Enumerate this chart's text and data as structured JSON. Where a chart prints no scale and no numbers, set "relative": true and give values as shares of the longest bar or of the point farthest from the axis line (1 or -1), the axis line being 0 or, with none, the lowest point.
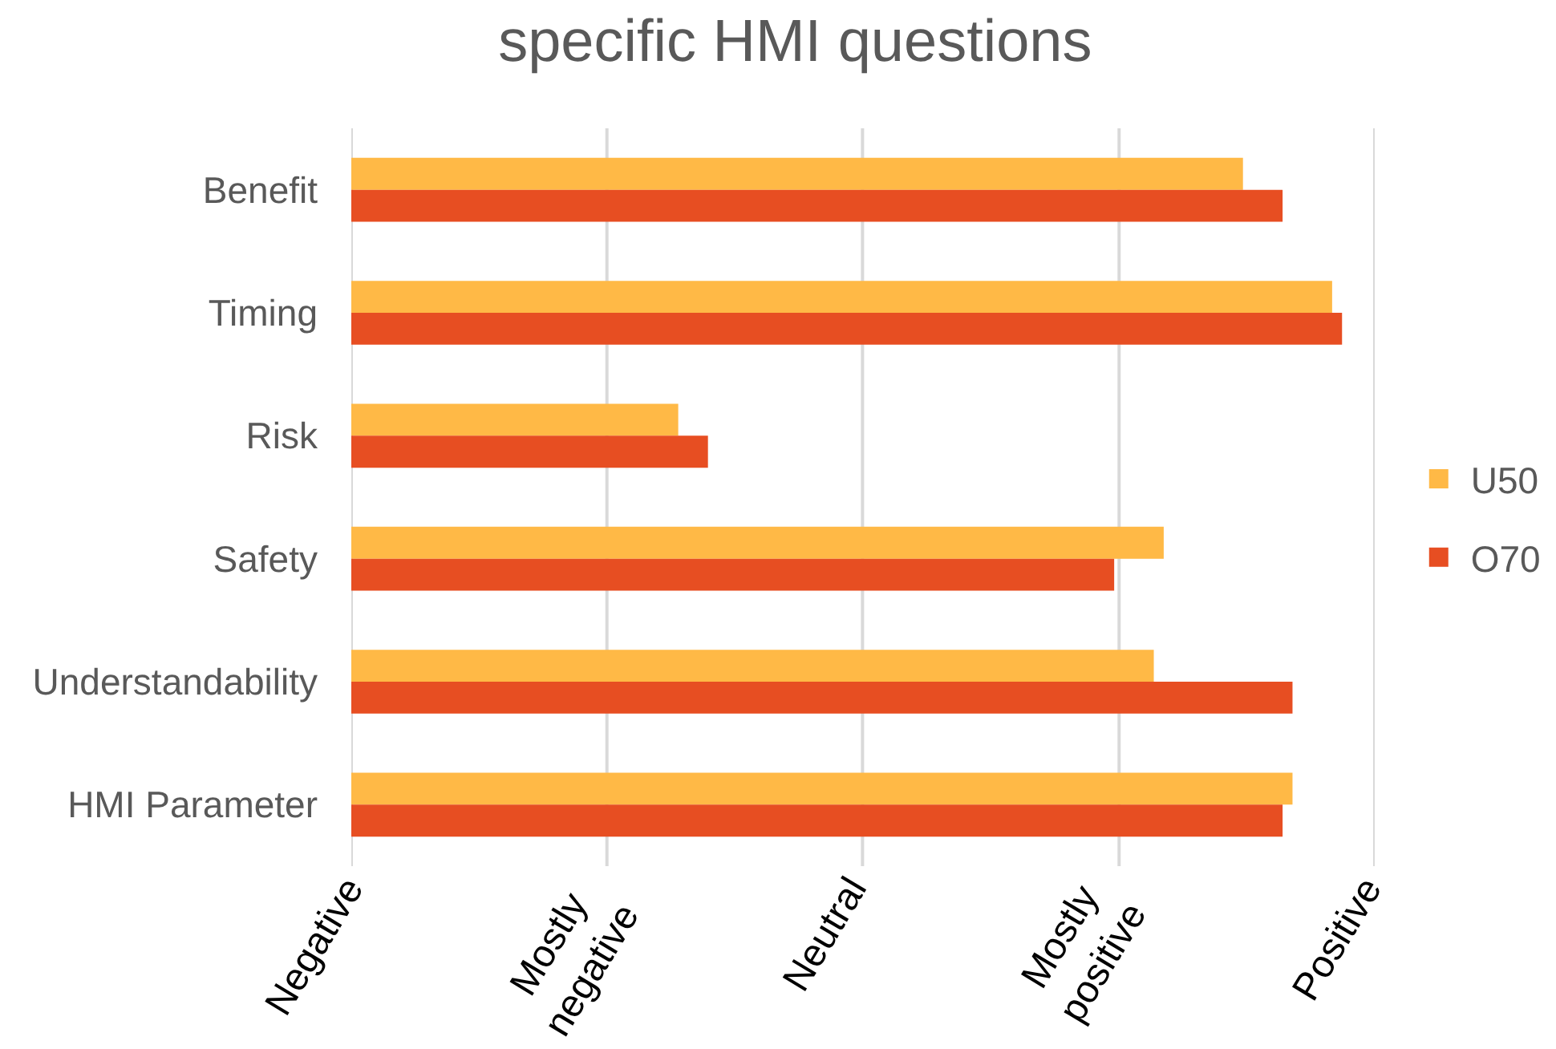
{
  "chart_data": {
    "type": "bar",
    "orientation": "horizontal",
    "relative": true,
    "title": "specific HMI questions",
    "categories": [
      "Benefit",
      "Timing",
      "Risk",
      "Safety",
      "Understandability",
      "HMI Parameter"
    ],
    "series": [
      {
        "name": "U50",
        "color": "#ffb946",
        "values": [
          0.9,
          0.99,
          0.33,
          0.82,
          0.81,
          0.95
        ]
      },
      {
        "name": "O70",
        "color": "#e74e22",
        "values": [
          0.94,
          1,
          0.36,
          0.77,
          0.95,
          0.94
        ]
      }
    ],
    "ref_lines": [
      {
        "axis": "x",
        "value": 0,
        "label": "Negative",
        "color": "#d9d9d9"
      },
      {
        "axis": "x",
        "value": 0.258,
        "label": "Mostly\nnegative",
        "color": "#d9d9d9"
      },
      {
        "axis": "x",
        "value": 0.516,
        "label": "Neutral",
        "color": "#d9d9d9"
      },
      {
        "axis": "x",
        "value": 0.775,
        "label": "Mostly\npositive",
        "color": "#d9d9d9"
      },
      {
        "axis": "x",
        "value": 1.033,
        "label": "Positive",
        "color": "#d9d9d9"
      }
    ],
    "legend": "right"
  }
}
